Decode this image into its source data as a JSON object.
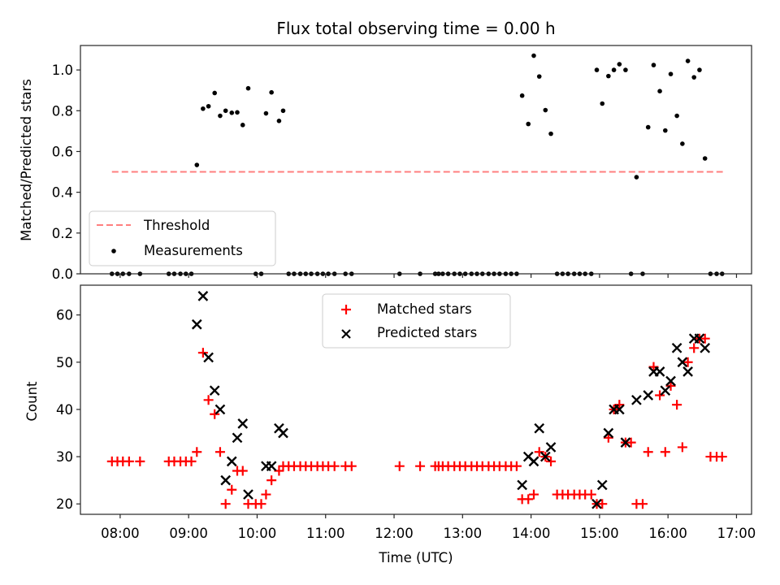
{
  "chart_data": [
    {
      "type": "scatter",
      "title": "Flux total observing time = 0.00 h",
      "xlabel": "",
      "ylabel": "Matched/Predicted stars",
      "xlim": [
        7.42,
        17.22
      ],
      "ylim": [
        0.0,
        1.12
      ],
      "xticks": [
        8,
        9,
        10,
        11,
        12,
        13,
        14,
        15,
        16,
        17
      ],
      "xtick_labels": [],
      "yticks": [
        0.0,
        0.2,
        0.4,
        0.6,
        0.8,
        1.0
      ],
      "ytick_labels": [
        "0.0",
        "0.2",
        "0.4",
        "0.6",
        "0.8",
        "1.0"
      ],
      "grid": false,
      "legend": {
        "placement": "lower-left",
        "entries": [
          "Threshold",
          "Measurements"
        ]
      },
      "threshold": {
        "name": "Threshold",
        "value": 0.5,
        "x_range": [
          7.88,
          16.8
        ],
        "color": "#ff7f7f",
        "style": "dashed"
      },
      "series": [
        {
          "name": "Measurements",
          "color": "#000000",
          "marker": "dot",
          "x": [
            7.88,
            7.96,
            8.04,
            8.13,
            8.29,
            8.71,
            8.79,
            8.88,
            8.96,
            9.04,
            9.12,
            9.21,
            9.29,
            9.38,
            9.46,
            9.54,
            9.63,
            9.71,
            9.79,
            9.87,
            9.98,
            10.06,
            10.13,
            10.21,
            10.32,
            10.38,
            10.46,
            10.54,
            10.63,
            10.71,
            10.79,
            10.88,
            10.96,
            11.04,
            11.13,
            11.29,
            11.38,
            12.08,
            12.38,
            12.6,
            12.65,
            12.71,
            12.79,
            12.88,
            12.96,
            13.04,
            13.13,
            13.21,
            13.29,
            13.38,
            13.46,
            13.54,
            13.63,
            13.71,
            13.79,
            13.87,
            13.96,
            14.04,
            14.12,
            14.21,
            14.29,
            14.38,
            14.46,
            14.54,
            14.63,
            14.71,
            14.79,
            14.88,
            14.96,
            15.04,
            15.13,
            15.21,
            15.29,
            15.38,
            15.46,
            15.54,
            15.63,
            15.71,
            15.79,
            15.88,
            15.96,
            16.04,
            16.13,
            16.21,
            16.29,
            16.38,
            16.46,
            16.54,
            16.62,
            16.71,
            16.79
          ],
          "y": [
            0,
            0,
            0,
            0,
            0,
            0,
            0,
            0,
            0,
            0,
            0.534,
            0.81,
            0.822,
            0.887,
            0.775,
            0.8,
            0.79,
            0.792,
            0.73,
            0.91,
            0,
            0,
            0.787,
            0.89,
            0.75,
            0.8,
            0,
            0,
            0,
            0,
            0,
            0,
            0,
            0,
            0,
            0,
            0,
            0,
            0,
            0,
            0,
            0,
            0,
            0,
            0,
            0,
            0,
            0,
            0,
            0,
            0,
            0,
            0,
            0,
            0,
            0.874,
            0.735,
            1.07,
            0.968,
            0.803,
            0.687,
            0,
            0,
            0,
            0,
            0,
            0,
            0,
            1.0,
            0.835,
            0.97,
            1.0,
            1.028,
            1.0,
            0,
            0.474,
            0,
            0.719,
            1.024,
            0.896,
            0.703,
            0.98,
            0.775,
            0.638,
            1.044,
            0.964,
            1.0,
            0.566,
            0,
            0,
            0
          ]
        }
      ]
    },
    {
      "type": "scatter",
      "title": "",
      "xlabel": "Time (UTC)",
      "ylabel": "Count",
      "xlim": [
        7.42,
        17.22
      ],
      "ylim": [
        17.8,
        66.3
      ],
      "xticks": [
        8,
        9,
        10,
        11,
        12,
        13,
        14,
        15,
        16,
        17
      ],
      "xtick_labels": [
        "08:00",
        "09:00",
        "10:00",
        "11:00",
        "12:00",
        "13:00",
        "14:00",
        "15:00",
        "16:00",
        "17:00"
      ],
      "yticks": [
        20,
        30,
        40,
        50,
        60
      ],
      "ytick_labels": [
        "20",
        "30",
        "40",
        "50",
        "60"
      ],
      "grid": false,
      "legend": {
        "placement": "top-center",
        "entries": [
          "Matched stars",
          "Predicted stars"
        ]
      },
      "series": [
        {
          "name": "Matched stars",
          "color": "#ff0000",
          "marker": "plus",
          "x": [
            7.88,
            7.96,
            8.04,
            8.13,
            8.29,
            8.71,
            8.79,
            8.88,
            8.96,
            9.04,
            9.12,
            9.21,
            9.29,
            9.38,
            9.46,
            9.54,
            9.63,
            9.71,
            9.79,
            9.87,
            9.98,
            10.06,
            10.13,
            10.21,
            10.32,
            10.38,
            10.46,
            10.54,
            10.63,
            10.71,
            10.79,
            10.88,
            10.96,
            11.04,
            11.13,
            11.29,
            11.38,
            12.08,
            12.38,
            12.6,
            12.65,
            12.71,
            12.79,
            12.88,
            12.96,
            13.04,
            13.13,
            13.21,
            13.29,
            13.38,
            13.46,
            13.54,
            13.63,
            13.71,
            13.79,
            13.87,
            13.96,
            14.04,
            14.12,
            14.21,
            14.29,
            14.38,
            14.46,
            14.54,
            14.63,
            14.71,
            14.79,
            14.88,
            14.96,
            15.04,
            15.13,
            15.21,
            15.29,
            15.38,
            15.46,
            15.54,
            15.63,
            15.71,
            15.79,
            15.88,
            15.96,
            16.04,
            16.13,
            16.21,
            16.29,
            16.38,
            16.46,
            16.54,
            16.62,
            16.71,
            16.79
          ],
          "y": [
            29,
            29,
            29,
            29,
            29,
            29,
            29,
            29,
            29,
            29,
            31,
            52,
            42,
            39,
            31,
            20,
            23,
            27,
            27,
            20,
            20,
            20,
            22,
            25,
            27,
            28,
            28,
            28,
            28,
            28,
            28,
            28,
            28,
            28,
            28,
            28,
            28,
            28,
            28,
            28,
            28,
            28,
            28,
            28,
            28,
            28,
            28,
            28,
            28,
            28,
            28,
            28,
            28,
            28,
            28,
            21,
            21,
            22,
            31,
            30,
            29,
            22,
            22,
            22,
            22,
            22,
            22,
            22,
            20,
            20,
            34,
            40,
            41,
            33,
            33,
            20,
            20,
            31,
            49,
            43,
            31,
            45,
            41,
            32,
            50,
            53,
            55,
            55,
            30,
            30,
            30
          ]
        },
        {
          "name": "Predicted stars",
          "color": "#000000",
          "marker": "x",
          "x": [
            9.12,
            9.21,
            9.29,
            9.38,
            9.46,
            9.54,
            9.63,
            9.71,
            9.79,
            9.87,
            10.13,
            10.21,
            10.32,
            10.38,
            13.87,
            13.96,
            14.04,
            14.12,
            14.21,
            14.29,
            14.96,
            15.04,
            15.13,
            15.21,
            15.29,
            15.38,
            15.54,
            15.71,
            15.79,
            15.88,
            15.96,
            16.04,
            16.13,
            16.21,
            16.29,
            16.38,
            16.46,
            16.54
          ],
          "y": [
            58,
            64,
            51,
            44,
            40,
            25,
            29,
            34,
            37,
            22,
            28,
            28,
            36,
            35,
            24,
            30,
            29,
            36,
            30,
            32,
            20,
            24,
            35,
            40,
            40,
            33,
            42,
            43,
            48,
            48,
            44,
            46,
            53,
            50,
            48,
            55,
            55,
            53
          ]
        }
      ]
    }
  ]
}
